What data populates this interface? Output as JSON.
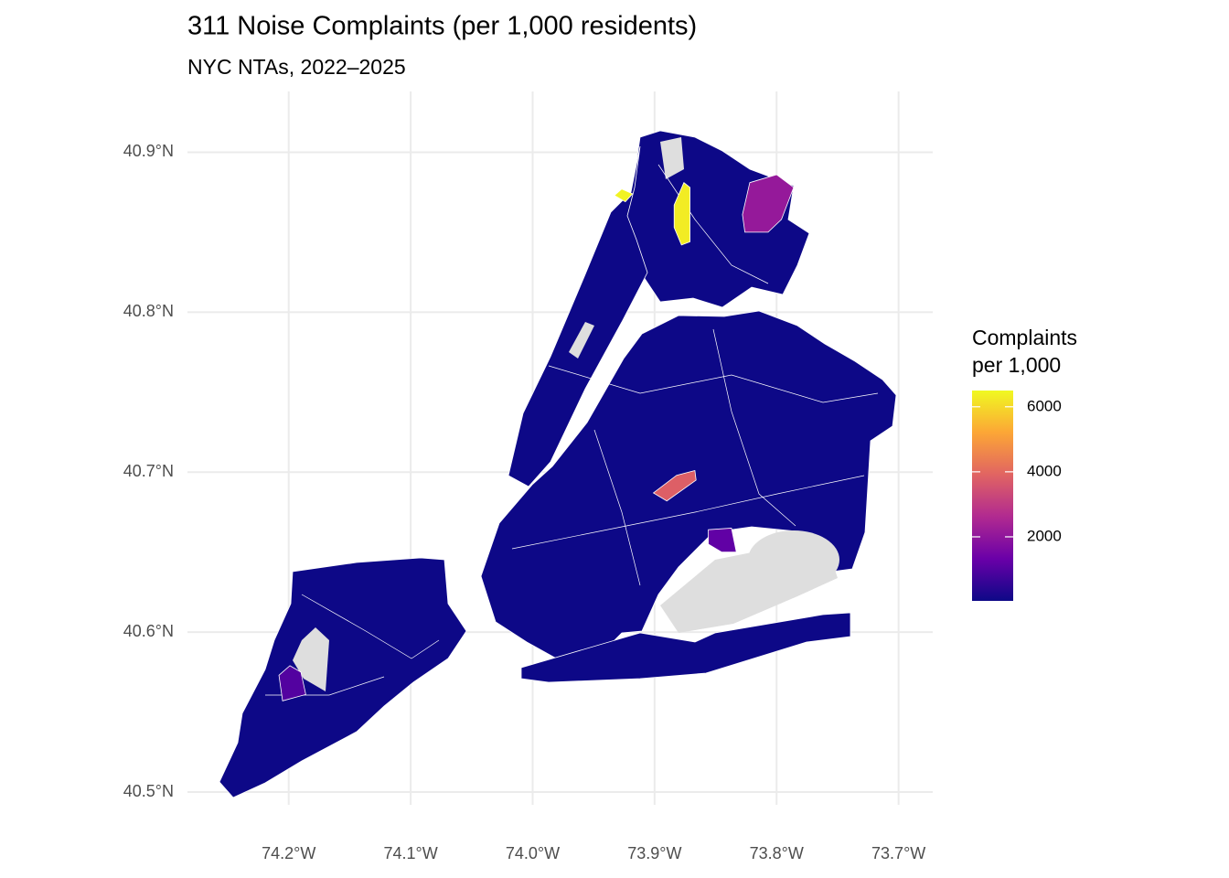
{
  "chart_data": {
    "type": "choropleth",
    "title": "311 Noise Complaints (per 1,000 residents)",
    "subtitle": "NYC NTAs, 2022–2025",
    "xlim": [
      -74.283,
      -73.672
    ],
    "ylim": [
      40.492,
      40.938
    ],
    "xticks": [
      {
        "value": -74.2,
        "label": "74.2°W"
      },
      {
        "value": -74.1,
        "label": "74.1°W"
      },
      {
        "value": -74.0,
        "label": "74.0°W"
      },
      {
        "value": -73.9,
        "label": "73.9°W"
      },
      {
        "value": -73.8,
        "label": "73.8°W"
      },
      {
        "value": -73.7,
        "label": "73.7°W"
      }
    ],
    "yticks": [
      {
        "value": 40.5,
        "label": "40.5°N"
      },
      {
        "value": 40.6,
        "label": "40.6°N"
      },
      {
        "value": 40.7,
        "label": "40.7°N"
      },
      {
        "value": 40.8,
        "label": "40.8°N"
      },
      {
        "value": 40.9,
        "label": "40.9°N"
      }
    ],
    "grid": true,
    "legend_title": [
      "Complaints",
      "per 1,000"
    ],
    "color_limits": [
      30,
      6500
    ],
    "color_ticks": [
      2000,
      4000,
      6000
    ],
    "colorscale": [
      "#0d0887",
      "#6a00a8",
      "#b12a90",
      "#e16462",
      "#fca636",
      "#f0f921"
    ],
    "regions": [
      {
        "value": 6400,
        "outline": [
          [
            -73.933,
            40.873
          ],
          [
            -73.927,
            40.877
          ],
          [
            -73.918,
            40.874
          ],
          [
            -73.924,
            40.869
          ]
        ]
      },
      {
        "value": 6300,
        "outline": [
          [
            -73.884,
            40.867
          ],
          [
            -73.876,
            40.881
          ],
          [
            -73.871,
            40.878
          ],
          [
            -73.871,
            40.844
          ],
          [
            -73.878,
            40.842
          ],
          [
            -73.884,
            40.853
          ]
        ]
      },
      {
        "value": 2100,
        "outline": [
          [
            -73.822,
            40.881
          ],
          [
            -73.8,
            40.886
          ],
          [
            -73.786,
            40.878
          ],
          [
            -73.796,
            40.858
          ],
          [
            -73.807,
            40.85
          ],
          [
            -73.826,
            40.85
          ],
          [
            -73.828,
            40.861
          ]
        ]
      },
      {
        "value": 3800,
        "outline": [
          [
            -73.901,
            40.687
          ],
          [
            -73.882,
            40.698
          ],
          [
            -73.867,
            40.701
          ],
          [
            -73.866,
            40.695
          ],
          [
            -73.89,
            40.682
          ]
        ]
      },
      {
        "value": 1200,
        "outline": [
          [
            -73.856,
            40.664
          ],
          [
            -73.837,
            40.665
          ],
          [
            -73.833,
            40.65
          ],
          [
            -73.845,
            40.65
          ],
          [
            -73.856,
            40.655
          ]
        ]
      },
      {
        "value": 1000,
        "outline": [
          [
            -74.208,
            40.573
          ],
          [
            -74.199,
            40.579
          ],
          [
            -74.19,
            40.575
          ],
          [
            -74.186,
            40.561
          ],
          [
            -74.205,
            40.557
          ]
        ]
      }
    ]
  }
}
